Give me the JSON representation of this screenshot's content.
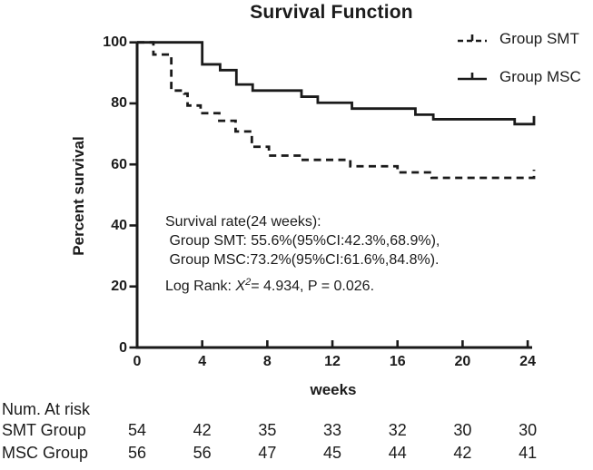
{
  "title": "Survival Function",
  "legend": [
    {
      "label": "Group SMT",
      "style": "dashed"
    },
    {
      "label": "Group MSC",
      "style": "solid"
    }
  ],
  "axes": {
    "x_label": "weeks",
    "y_label": "Percent survival",
    "x_ticks": [
      0,
      4,
      8,
      12,
      16,
      20,
      24
    ],
    "y_ticks": [
      0,
      20,
      40,
      60,
      80,
      100
    ]
  },
  "annotation": {
    "line1": "Survival rate(24 weeks):",
    "line2": " Group SMT: 55.6%(95%CI:42.3%,68.9%),",
    "line3": " Group MSC:73.2%(95%CI:61.6%,84.8%).",
    "logrank_prefix": "Log Rank: ",
    "logrank_stat": "X",
    "logrank_sup": "2",
    "logrank_suffix": "= 4.934, P = 0.026."
  },
  "risk_table": {
    "caption": "Num. At risk",
    "week_columns": [
      0,
      4,
      8,
      12,
      16,
      20,
      24
    ],
    "rows": [
      {
        "label": "SMT Group",
        "values": [
          54,
          42,
          35,
          33,
          32,
          30,
          30
        ]
      },
      {
        "label": "MSC Group",
        "values": [
          56,
          56,
          47,
          45,
          44,
          42,
          41
        ]
      }
    ]
  },
  "chart_data": {
    "type": "line",
    "subtype": "kaplan-meier-step",
    "title": "Survival Function",
    "xlabel": "weeks",
    "ylabel": "Percent survival",
    "xlim": [
      0,
      24
    ],
    "ylim": [
      0,
      100
    ],
    "grid": false,
    "legend_position": "top-right",
    "line_color": "#1a1a1a",
    "series": [
      {
        "name": "Group SMT",
        "style": "dashed",
        "end_censor_tick": true,
        "steps": [
          [
            0,
            100
          ],
          [
            1,
            96
          ],
          [
            2.1,
            84.2
          ],
          [
            2.9,
            83.2
          ],
          [
            3.1,
            79.3
          ],
          [
            3.9,
            76.8
          ],
          [
            5.05,
            74.3
          ],
          [
            6.05,
            70.8
          ],
          [
            7.05,
            65.8
          ],
          [
            8.1,
            62.9
          ],
          [
            10.1,
            61.5
          ],
          [
            13.1,
            59.4
          ],
          [
            16,
            57.4
          ],
          [
            18.1,
            55.6
          ],
          [
            24,
            55.6
          ]
        ]
      },
      {
        "name": "Group MSC",
        "style": "solid",
        "end_censor_tick": true,
        "steps": [
          [
            0,
            100
          ],
          [
            4,
            92.8
          ],
          [
            5.1,
            90.9
          ],
          [
            6.1,
            86.2
          ],
          [
            7.1,
            84.2
          ],
          [
            10.1,
            82.2
          ],
          [
            11.1,
            80.2
          ],
          [
            13.2,
            78.3
          ],
          [
            17.1,
            76.3
          ],
          [
            18.2,
            74.8
          ],
          [
            23.2,
            73.2
          ],
          [
            24,
            73.2
          ]
        ]
      }
    ],
    "survival_at_24_weeks": {
      "Group SMT": {
        "estimate_pct": 55.6,
        "ci95_pct": [
          42.3,
          68.9
        ]
      },
      "Group MSC": {
        "estimate_pct": 73.2,
        "ci95_pct": [
          61.6,
          84.8
        ]
      }
    },
    "log_rank": {
      "chi_square": 4.934,
      "p_value": 0.026
    }
  }
}
